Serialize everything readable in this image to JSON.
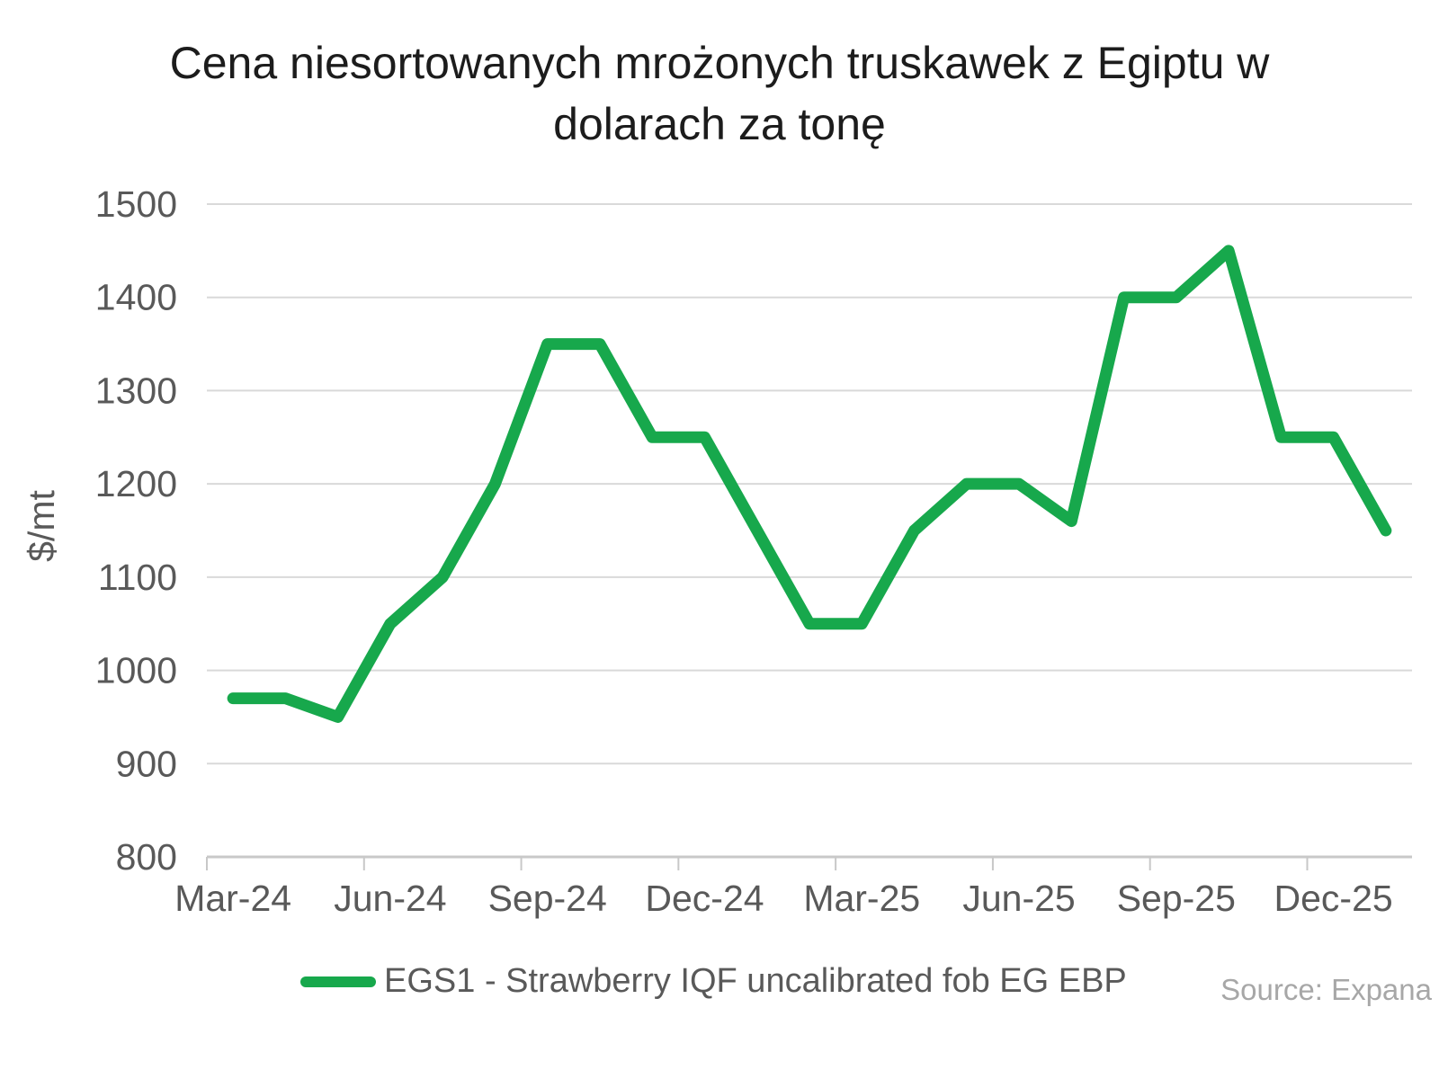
{
  "title": {
    "line1": "Cena niesortowanych mrożonych truskawek z Egiptu w",
    "line2": "dolarach za tonę"
  },
  "legend": {
    "series_label": "EGS1 - Strawberry IQF uncalibrated fob EG EBP"
  },
  "source": {
    "text": "Source: Expana"
  },
  "colors": {
    "line": "#17a84c",
    "gridline": "#d9d9d9",
    "axis": "#c8c8c8",
    "axis_text": "#595959",
    "title_text": "#1c1c1c",
    "source_text": "#a7a7a7"
  },
  "chart_data": {
    "type": "line",
    "title": "Cena niesortowanych mrożonych truskawek z Egiptu w dolarach za tonę",
    "xlabel": "",
    "ylabel": "$/mt",
    "ylim": [
      800,
      1500
    ],
    "y_ticks": [
      800,
      900,
      1000,
      1100,
      1200,
      1300,
      1400,
      1500
    ],
    "x": [
      "Mar-24",
      "Apr-24",
      "May-24",
      "Jun-24",
      "Jul-24",
      "Aug-24",
      "Sep-24",
      "Oct-24",
      "Nov-24",
      "Dec-24",
      "Jan-25",
      "Feb-25",
      "Mar-25",
      "Apr-25",
      "May-25",
      "Jun-25",
      "Jul-25",
      "Aug-25",
      "Sep-25",
      "Oct-25",
      "Nov-25",
      "Dec-25",
      "Jan-26"
    ],
    "x_major_tick_every": 3,
    "x_tick_labels": [
      "Mar-24",
      "Jun-24",
      "Sep-24",
      "Dec-24",
      "Mar-25",
      "Jun-25",
      "Sep-25",
      "Dec-25"
    ],
    "grid": "horizontal",
    "legend_position": "bottom",
    "series": [
      {
        "name": "EGS1 - Strawberry IQF uncalibrated fob EG EBP",
        "color": "#17a84c",
        "values": [
          970,
          970,
          950,
          1050,
          1100,
          1200,
          1350,
          1350,
          1250,
          1250,
          1150,
          1050,
          1050,
          1150,
          1200,
          1200,
          1160,
          1400,
          1400,
          1450,
          1250,
          1250,
          1150
        ]
      }
    ]
  }
}
